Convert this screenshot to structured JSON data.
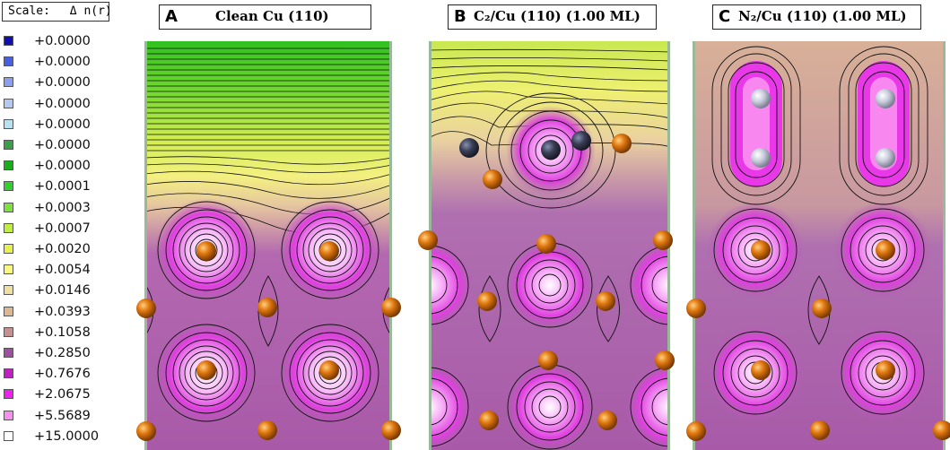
{
  "scale": {
    "label": "Scale:",
    "quantity": "Δ n(r)"
  },
  "legend": [
    {
      "value": "+0.0000",
      "color": "#1010b0"
    },
    {
      "value": "+0.0000",
      "color": "#4a5ee0"
    },
    {
      "value": "+0.0000",
      "color": "#8c9ef0"
    },
    {
      "value": "+0.0000",
      "color": "#b4c8f0"
    },
    {
      "value": "+0.0000",
      "color": "#b8e0f0"
    },
    {
      "value": "+0.0000",
      "color": "#3aa04a"
    },
    {
      "value": "+0.0000",
      "color": "#18b018"
    },
    {
      "value": "+0.0001",
      "color": "#30d030"
    },
    {
      "value": "+0.0003",
      "color": "#80e040"
    },
    {
      "value": "+0.0007",
      "color": "#c0ee40"
    },
    {
      "value": "+0.0020",
      "color": "#e8f050"
    },
    {
      "value": "+0.0054",
      "color": "#f8f880"
    },
    {
      "value": "+0.0146",
      "color": "#f0e0a0"
    },
    {
      "value": "+0.0393",
      "color": "#dcb890"
    },
    {
      "value": "+0.1058",
      "color": "#c49090"
    },
    {
      "value": "+0.2850",
      "color": "#a050a0"
    },
    {
      "value": "+0.7676",
      "color": "#c020c0"
    },
    {
      "value": "+2.0675",
      "color": "#f020f0"
    },
    {
      "value": "+5.5689",
      "color": "#f890f0"
    },
    {
      "value": "+15.0000",
      "color": "#ffffff"
    }
  ],
  "panels": {
    "a": {
      "letter": "A",
      "title": "Clean Cu (110)"
    },
    "b": {
      "letter": "B",
      "title": "C₂/Cu (110) (1.00 ML)"
    },
    "c": {
      "letter": "C",
      "title": "N₂/Cu (110) (1.00 ML)"
    }
  },
  "colors": {
    "cu_atom": "#e07810",
    "c_atom": "#3a3e55",
    "n_atom": "#c8ccdc",
    "contour": "#111111"
  }
}
